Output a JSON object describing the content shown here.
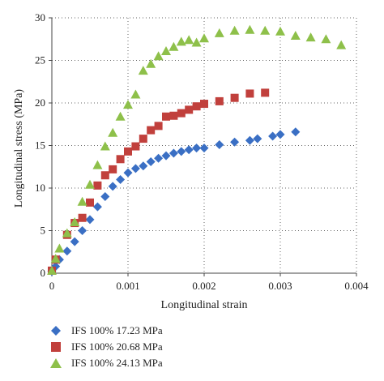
{
  "chart_data": {
    "type": "scatter",
    "title": "",
    "xlabel": "Longitudinal strain",
    "ylabel": "Longitudinal stress (MPa)",
    "xlim": [
      0,
      0.004
    ],
    "ylim": [
      0,
      30
    ],
    "x_ticks": [
      "0",
      "0.001",
      "0.002",
      "0.003",
      "0.004"
    ],
    "y_ticks": [
      "0",
      "5",
      "10",
      "15",
      "20",
      "25",
      "30"
    ],
    "grid": "dotted vertical and horizontal",
    "legend_position": "bottom",
    "series": [
      {
        "name": "IFS 100% 17.23 MPa",
        "color": "#3a6fc4",
        "marker": "diamond",
        "points": [
          [
            0.0,
            0.2
          ],
          [
            5e-05,
            0.8
          ],
          [
            0.0001,
            1.6
          ],
          [
            0.0002,
            2.6
          ],
          [
            0.0003,
            3.7
          ],
          [
            0.0004,
            5.0
          ],
          [
            0.0005,
            6.3
          ],
          [
            0.0006,
            7.8
          ],
          [
            0.0007,
            9.0
          ],
          [
            0.0008,
            10.2
          ],
          [
            0.0009,
            11.0
          ],
          [
            0.001,
            11.8
          ],
          [
            0.0011,
            12.3
          ],
          [
            0.0012,
            12.6
          ],
          [
            0.0013,
            13.1
          ],
          [
            0.0014,
            13.5
          ],
          [
            0.0015,
            13.8
          ],
          [
            0.0016,
            14.1
          ],
          [
            0.0017,
            14.3
          ],
          [
            0.0018,
            14.5
          ],
          [
            0.0019,
            14.7
          ],
          [
            0.002,
            14.7
          ],
          [
            0.0022,
            15.1
          ],
          [
            0.0024,
            15.4
          ],
          [
            0.0026,
            15.6
          ],
          [
            0.0027,
            15.8
          ],
          [
            0.0029,
            16.1
          ],
          [
            0.003,
            16.3
          ],
          [
            0.0032,
            16.6
          ]
        ]
      },
      {
        "name": "IFS 100% 20.68 MPa",
        "color": "#c1403c",
        "marker": "square",
        "points": [
          [
            0.0,
            0.3
          ],
          [
            5e-05,
            1.6
          ],
          [
            0.0002,
            4.5
          ],
          [
            0.0003,
            5.9
          ],
          [
            0.0004,
            6.5
          ],
          [
            0.0005,
            8.3
          ],
          [
            0.0006,
            10.3
          ],
          [
            0.0007,
            11.5
          ],
          [
            0.0008,
            12.2
          ],
          [
            0.0009,
            13.4
          ],
          [
            0.001,
            14.3
          ],
          [
            0.0011,
            14.9
          ],
          [
            0.0012,
            15.8
          ],
          [
            0.0013,
            16.8
          ],
          [
            0.0014,
            17.3
          ],
          [
            0.0015,
            18.4
          ],
          [
            0.0016,
            18.5
          ],
          [
            0.0017,
            18.8
          ],
          [
            0.0018,
            19.2
          ],
          [
            0.0019,
            19.6
          ],
          [
            0.002,
            19.9
          ],
          [
            0.0022,
            20.2
          ],
          [
            0.0024,
            20.6
          ],
          [
            0.0026,
            21.1
          ],
          [
            0.0028,
            21.2
          ]
        ]
      },
      {
        "name": "IFS 100% 24.13 MPa",
        "color": "#8ec04a",
        "marker": "triangle",
        "points": [
          [
            0.0,
            0.3
          ],
          [
            5e-05,
            1.7
          ],
          [
            0.0001,
            2.9
          ],
          [
            0.0002,
            4.7
          ],
          [
            0.0003,
            6.0
          ],
          [
            0.0004,
            8.4
          ],
          [
            0.0005,
            10.4
          ],
          [
            0.0006,
            12.7
          ],
          [
            0.0007,
            14.9
          ],
          [
            0.0008,
            16.5
          ],
          [
            0.0009,
            18.4
          ],
          [
            0.001,
            19.8
          ],
          [
            0.0011,
            21.0
          ],
          [
            0.0012,
            23.8
          ],
          [
            0.0013,
            24.6
          ],
          [
            0.0014,
            25.5
          ],
          [
            0.0015,
            26.1
          ],
          [
            0.0016,
            26.6
          ],
          [
            0.0017,
            27.2
          ],
          [
            0.0018,
            27.4
          ],
          [
            0.0019,
            27.1
          ],
          [
            0.002,
            27.6
          ],
          [
            0.0022,
            28.2
          ],
          [
            0.0024,
            28.5
          ],
          [
            0.0026,
            28.6
          ],
          [
            0.0028,
            28.5
          ],
          [
            0.003,
            28.4
          ],
          [
            0.0032,
            27.9
          ],
          [
            0.0034,
            27.7
          ],
          [
            0.0036,
            27.5
          ],
          [
            0.0038,
            26.8
          ]
        ]
      }
    ]
  }
}
